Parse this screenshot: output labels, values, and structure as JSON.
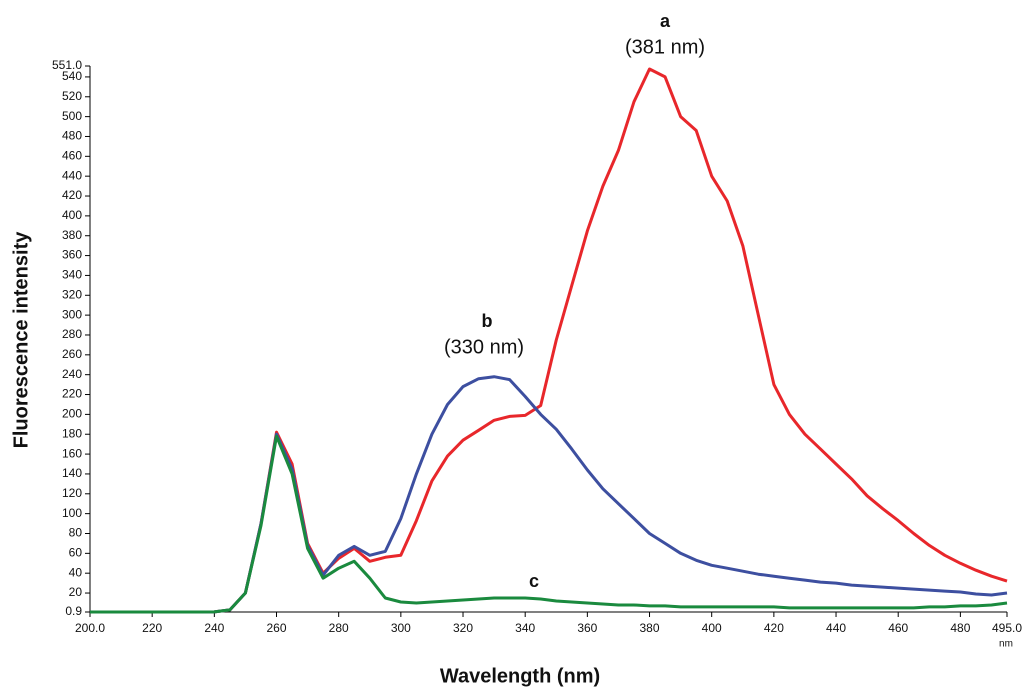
{
  "chart_data": {
    "type": "line",
    "x_label": "Wavelength (nm)",
    "x_unit": "nm",
    "y_label": "Fluorescence intensity",
    "x": [
      200,
      205,
      210,
      215,
      220,
      225,
      230,
      235,
      240,
      245,
      250,
      255,
      260,
      265,
      270,
      275,
      280,
      285,
      290,
      295,
      300,
      305,
      310,
      315,
      320,
      325,
      330,
      335,
      340,
      345,
      350,
      355,
      360,
      365,
      370,
      375,
      380,
      385,
      390,
      395,
      400,
      405,
      410,
      415,
      420,
      425,
      430,
      435,
      440,
      445,
      450,
      455,
      460,
      465,
      470,
      475,
      480,
      485,
      490,
      495
    ],
    "series": [
      {
        "name": "a",
        "color": "#e8272b",
        "values": [
          0.9,
          0.9,
          0.9,
          0.9,
          0.9,
          0.9,
          0.9,
          0.9,
          1,
          3,
          20,
          90,
          182,
          150,
          70,
          40,
          55,
          65,
          52,
          56,
          58,
          93,
          133,
          158,
          174,
          184,
          194,
          198,
          199,
          209,
          275,
          330,
          385,
          430,
          466,
          515,
          548,
          540,
          500,
          486,
          440,
          415,
          370,
          300,
          230,
          200,
          180,
          165,
          150,
          135,
          118,
          105,
          93,
          80,
          68,
          58,
          50,
          43,
          37,
          32
        ]
      },
      {
        "name": "b",
        "color": "#3d4fa0",
        "values": [
          0.9,
          0.9,
          0.9,
          0.9,
          0.9,
          0.9,
          0.9,
          0.9,
          1,
          3,
          20,
          90,
          180,
          145,
          68,
          38,
          58,
          67,
          58,
          62,
          95,
          140,
          180,
          210,
          228,
          236,
          238,
          235,
          218,
          200,
          185,
          165,
          144,
          125,
          110,
          95,
          80,
          70,
          60,
          53,
          48,
          45,
          42,
          39,
          37,
          35,
          33,
          31,
          30,
          28,
          27,
          26,
          25,
          24,
          23,
          22,
          21,
          19,
          18,
          20
        ]
      },
      {
        "name": "c",
        "color": "#1a8a3e",
        "values": [
          0.9,
          0.9,
          0.9,
          0.9,
          0.9,
          0.9,
          0.9,
          0.9,
          1,
          3,
          20,
          88,
          178,
          140,
          65,
          35,
          45,
          52,
          35,
          15,
          11,
          10,
          11,
          12,
          13,
          14,
          15,
          15,
          15,
          14,
          12,
          11,
          10,
          9,
          8,
          8,
          7,
          7,
          6,
          6,
          6,
          6,
          6,
          6,
          6,
          5,
          5,
          5,
          5,
          5,
          5,
          5,
          5,
          5,
          6,
          6,
          7,
          7,
          8,
          10
        ]
      }
    ],
    "annotations": [
      "a",
      "(381 nm)",
      "b",
      "(330 nm)",
      "c"
    ],
    "xlim": [
      200,
      495
    ],
    "xticks": [
      {
        "value": 200,
        "label": "200.0"
      },
      220,
      240,
      260,
      280,
      300,
      320,
      340,
      360,
      380,
      400,
      420,
      440,
      460,
      480,
      {
        "value": 495,
        "label": "495.0"
      }
    ],
    "ylim": [
      0.9,
      551
    ],
    "yticks": [
      0.9,
      20,
      40,
      60,
      80,
      100,
      120,
      140,
      160,
      180,
      200,
      220,
      240,
      260,
      280,
      300,
      320,
      340,
      360,
      380,
      400,
      420,
      440,
      460,
      480,
      500,
      520,
      540,
      {
        "value": 551,
        "label": "551.0"
      }
    ],
    "grid": false
  }
}
